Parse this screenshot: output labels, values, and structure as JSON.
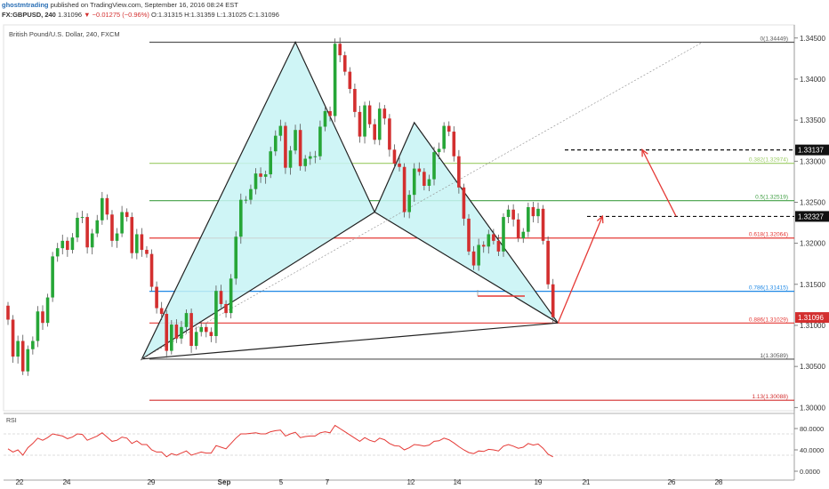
{
  "header": {
    "author": "ghostmtrading",
    "published": " published on TradingView.com, September 16, 2016 08:24 EST",
    "symbol": "FX:GBPUSD, 240",
    "last": "1.31096",
    "change": "▼ −0.01275 (−0.96%)",
    "ohlc": "O:1.31315 H:1.31359 L:1.31025 C:1.31096"
  },
  "chart_data": {
    "type": "candlestick",
    "title": "British Pound/U.S. Dollar, 240, FXCM",
    "x_tick_labels": [
      "22",
      "24",
      "29",
      "Sep",
      "5",
      "7",
      "12",
      "14",
      "19",
      "21",
      "26",
      "28"
    ],
    "y_tick_labels": [
      "1.34500",
      "1.34000",
      "1.33500",
      "1.33000",
      "1.32500",
      "1.32000",
      "1.31500",
      "1.31000",
      "1.30500",
      "1.30000"
    ],
    "ylim": [
      1.2996,
      1.3466
    ],
    "close": [
      1.3107,
      1.3062,
      1.3081,
      1.3044,
      1.3071,
      1.3081,
      1.3117,
      1.3103,
      1.3134,
      1.3184,
      1.3194,
      1.3203,
      1.3192,
      1.3207,
      1.3231,
      1.3232,
      1.3195,
      1.3212,
      1.3228,
      1.3255,
      1.3235,
      1.3203,
      1.3212,
      1.3238,
      1.3232,
      1.3188,
      1.3211,
      1.3192,
      1.3187,
      1.3147,
      1.3121,
      1.3114,
      1.3069,
      1.3101,
      1.3084,
      1.3098,
      1.3115,
      1.3075,
      1.3092,
      1.3098,
      1.3092,
      1.3087,
      1.3142,
      1.3126,
      1.3115,
      1.3157,
      1.3208,
      1.3253,
      1.3253,
      1.3266,
      1.3285,
      1.3281,
      1.3284,
      1.3312,
      1.3331,
      1.3343,
      1.3292,
      1.3313,
      1.3338,
      1.3294,
      1.3303,
      1.3306,
      1.3306,
      1.3342,
      1.3361,
      1.3355,
      1.3443,
      1.3429,
      1.3409,
      1.3388,
      1.336,
      1.333,
      1.3368,
      1.3345,
      1.3326,
      1.3364,
      1.3352,
      1.3314,
      1.3297,
      1.3293,
      1.3238,
      1.3259,
      1.3291,
      1.3287,
      1.327,
      1.3278,
      1.3311,
      1.3315,
      1.3343,
      1.3336,
      1.3306,
      1.3268,
      1.323,
      1.319,
      1.3173,
      1.3198,
      1.3196,
      1.3211,
      1.3203,
      1.319,
      1.3232,
      1.3241,
      1.3229,
      1.3206,
      1.3214,
      1.3244,
      1.3233,
      1.3242,
      1.3203,
      1.315,
      1.311
    ],
    "open": [
      1.3124,
      1.3107,
      1.3062,
      1.3081,
      1.3044,
      1.3071,
      1.3081,
      1.3117,
      1.3103,
      1.3134,
      1.3184,
      1.3194,
      1.3203,
      1.3192,
      1.3207,
      1.3231,
      1.3232,
      1.3195,
      1.3212,
      1.3228,
      1.3255,
      1.3235,
      1.3203,
      1.3212,
      1.3238,
      1.3232,
      1.3188,
      1.3211,
      1.3192,
      1.3187,
      1.3147,
      1.3121,
      1.3114,
      1.3069,
      1.3101,
      1.3084,
      1.3098,
      1.3115,
      1.3075,
      1.3092,
      1.3098,
      1.3092,
      1.3087,
      1.3142,
      1.3126,
      1.3115,
      1.3157,
      1.3208,
      1.3253,
      1.3253,
      1.3266,
      1.3285,
      1.3281,
      1.3284,
      1.3312,
      1.3331,
      1.3343,
      1.3292,
      1.3313,
      1.3338,
      1.3294,
      1.3303,
      1.3306,
      1.3306,
      1.3342,
      1.3361,
      1.3355,
      1.3443,
      1.3429,
      1.3409,
      1.3388,
      1.336,
      1.333,
      1.3368,
      1.3345,
      1.3326,
      1.3364,
      1.3352,
      1.3314,
      1.3297,
      1.3293,
      1.3238,
      1.3259,
      1.3291,
      1.3287,
      1.327,
      1.3278,
      1.3311,
      1.3315,
      1.3343,
      1.3336,
      1.3306,
      1.3268,
      1.323,
      1.319,
      1.3173,
      1.3198,
      1.3196,
      1.3211,
      1.3203,
      1.319,
      1.3232,
      1.3241,
      1.3229,
      1.3206,
      1.3214,
      1.3244,
      1.3233,
      1.3242,
      1.3203,
      1.315
    ],
    "fib_levels": [
      {
        "ratio": "0",
        "price": "1.34449",
        "label": "0(1.34449)",
        "color": "#555555"
      },
      {
        "ratio": "0.382",
        "price": "1.32974",
        "label": "0.382(1.32974)",
        "color": "#9ccc65"
      },
      {
        "ratio": "0.5",
        "price": "1.32519",
        "label": "0.5(1.32519)",
        "color": "#43a047"
      },
      {
        "ratio": "0.618",
        "price": "1.32064",
        "label": "0.618(1.32064)",
        "color": "#e53935"
      },
      {
        "ratio": "0.786",
        "price": "1.31415",
        "label": "0.786(1.31415)",
        "color": "#1e88e5"
      },
      {
        "ratio": "0.886",
        "price": "1.31029",
        "label": "0.886(1.31029)",
        "color": "#e53935"
      },
      {
        "ratio": "1",
        "price": "1.30589",
        "label": "1(1.30589)",
        "color": "#555555"
      },
      {
        "ratio": "1.13",
        "price": "1.30088",
        "label": "1.13(1.30088)",
        "color": "#d32f2f"
      }
    ],
    "price_tags": [
      {
        "label": "1.33137",
        "price": 1.33137,
        "bg": "#111111",
        "fg": "#ffffff",
        "dashed_line": true
      },
      {
        "label": "1.32327",
        "price": 1.32327,
        "bg": "#111111",
        "fg": "#ffffff",
        "dashed_line": true
      },
      {
        "label": "1.31096",
        "price": 1.31096,
        "bg": "#d32f2f",
        "fg": "#ffffff",
        "dashed_line": false
      }
    ],
    "pattern_points": [
      {
        "bar": 27,
        "price": 1.3059
      },
      {
        "bar": 58,
        "price": 1.3445
      },
      {
        "bar": 74,
        "price": 1.3238
      },
      {
        "bar": 82,
        "price": 1.3347
      },
      {
        "bar": 111,
        "price": 1.3103
      }
    ],
    "projection_targets": [
      {
        "bar": 120,
        "price": 1.3233
      },
      {
        "bar": 128,
        "price": 1.3314
      }
    ],
    "rsi": {
      "label": "RSI",
      "y_tick_labels": [
        "80.0000",
        "40.0000",
        "0.0000"
      ],
      "ylim": [
        0,
        100
      ],
      "values": [
        42,
        36,
        40,
        30,
        44,
        52,
        62,
        58,
        63,
        70,
        68,
        66,
        61,
        64,
        70,
        69,
        58,
        62,
        66,
        72,
        64,
        56,
        58,
        64,
        62,
        52,
        57,
        50,
        50,
        40,
        36,
        36,
        27,
        33,
        30,
        34,
        38,
        30,
        33,
        36,
        34,
        34,
        48,
        45,
        42,
        52,
        62,
        70,
        70,
        71,
        72,
        70,
        70,
        74,
        76,
        77,
        66,
        70,
        73,
        63,
        65,
        66,
        66,
        72,
        74,
        72,
        86,
        80,
        74,
        68,
        62,
        56,
        63,
        58,
        55,
        62,
        59,
        52,
        48,
        47,
        40,
        44,
        50,
        49,
        47,
        49,
        56,
        57,
        62,
        59,
        53,
        46,
        40,
        35,
        33,
        38,
        37,
        41,
        40,
        38,
        47,
        50,
        47,
        43,
        45,
        52,
        49,
        51,
        43,
        32,
        27
      ]
    },
    "colors": {
      "up": "#26a637",
      "down": "#d32f2f",
      "rsi_line": "#e53935",
      "pattern_fill": "#c7f3f4",
      "arrow": "#e53935"
    }
  }
}
